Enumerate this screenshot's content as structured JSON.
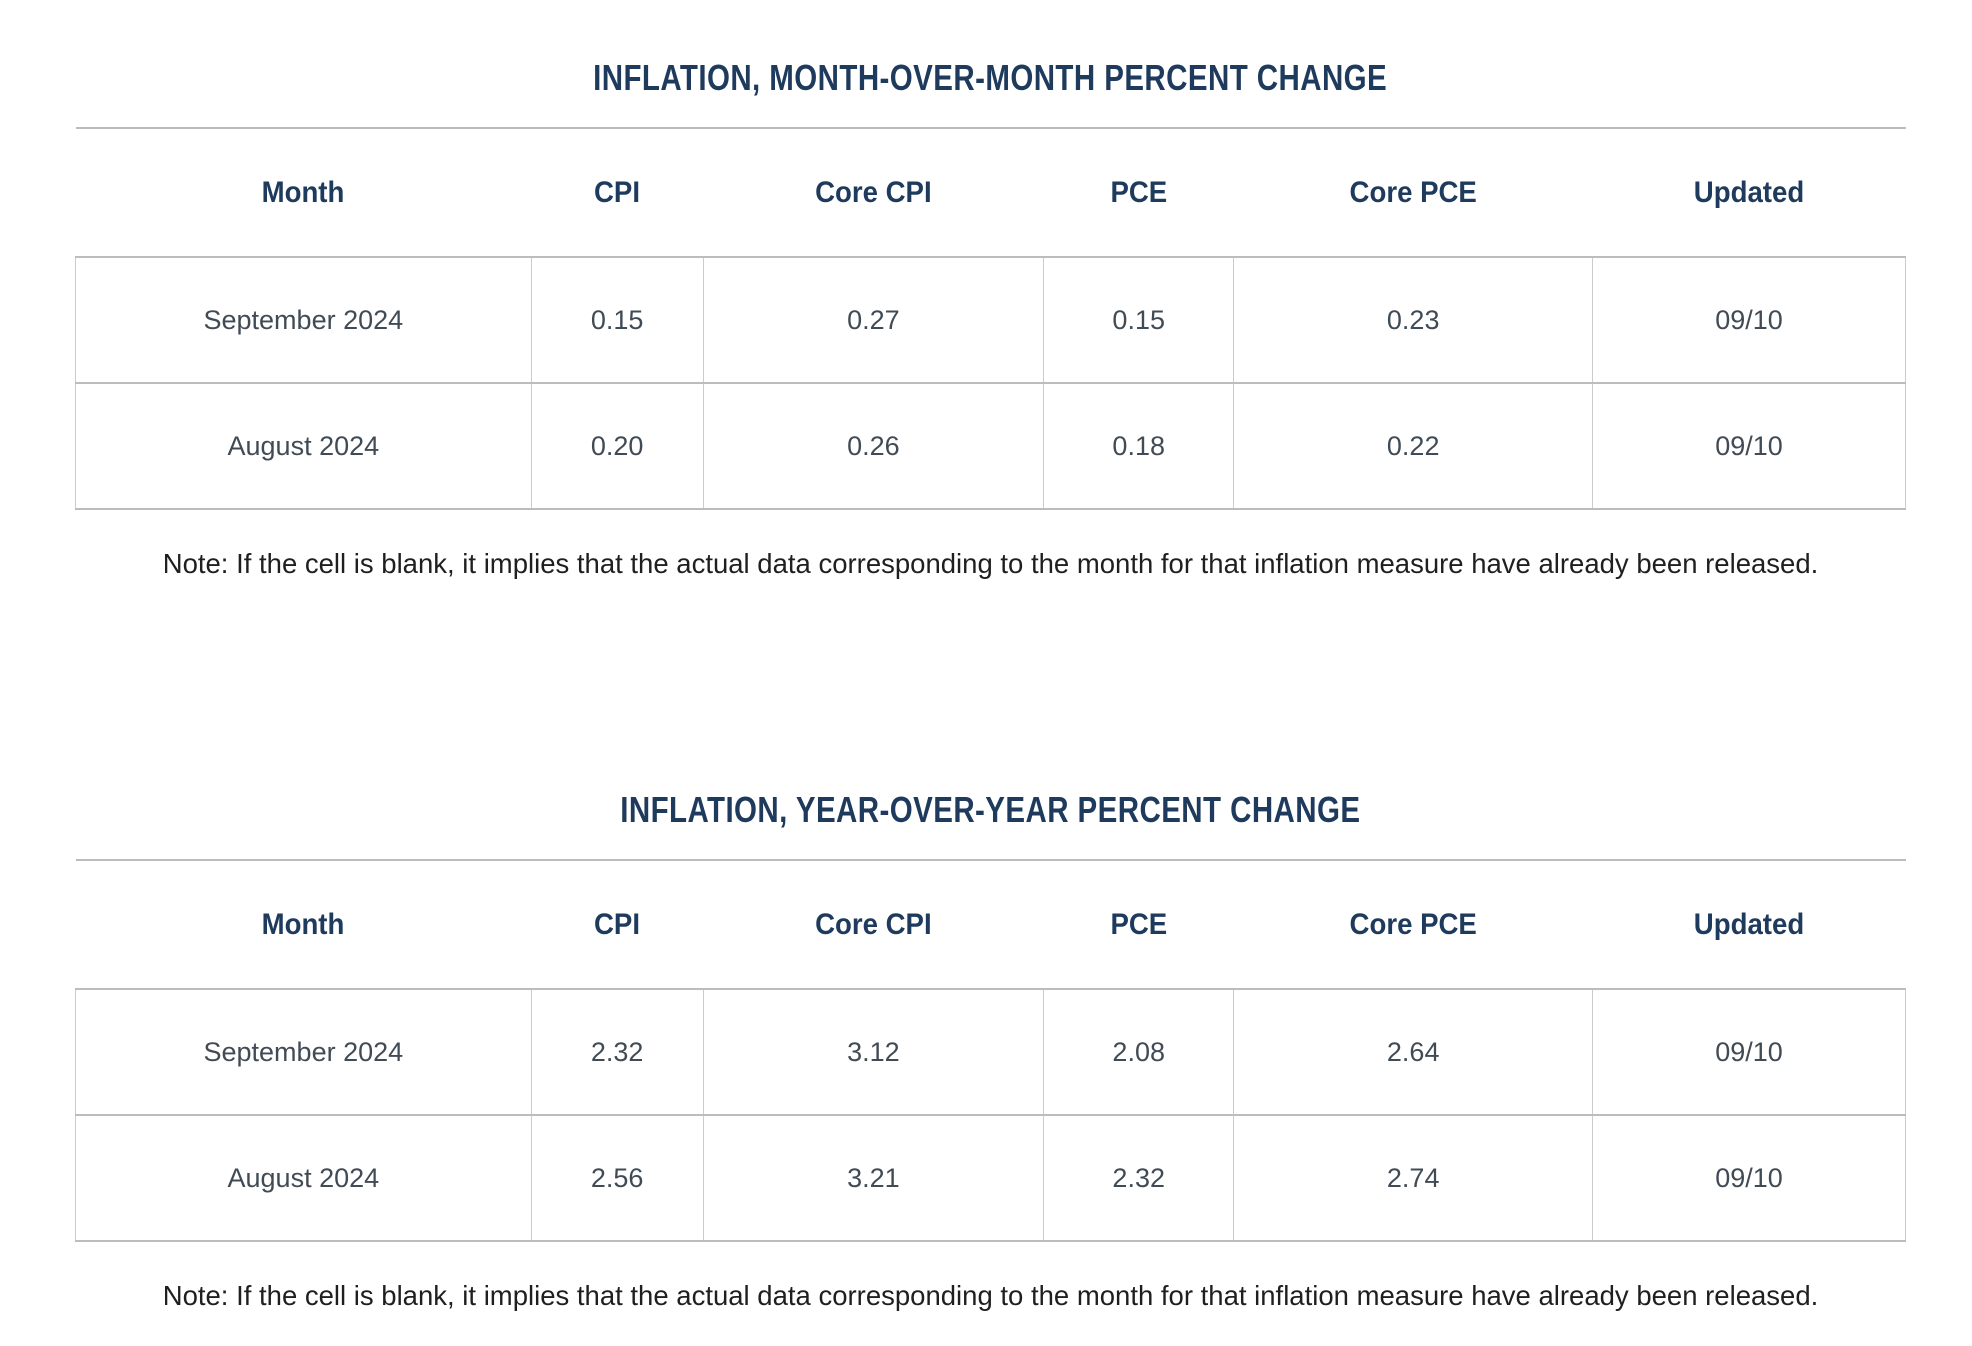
{
  "colors": {
    "title_navy": "#1e3a5c",
    "header_navy": "#1e3a5c",
    "data_text": "#414b55",
    "note_text": "#1f1f1f",
    "rule_horizontal": "#b9bdc0",
    "rule_vertical": "#caccce",
    "background": "#ffffff"
  },
  "tables": [
    {
      "title": "INFLATION, MONTH-OVER-MONTH PERCENT CHANGE",
      "columns": [
        "Month",
        "CPI",
        "Core CPI",
        "PCE",
        "Core PCE",
        "Updated"
      ],
      "rows": [
        [
          "September 2024",
          "0.15",
          "0.27",
          "0.15",
          "0.23",
          "09/10"
        ],
        [
          "August 2024",
          "0.20",
          "0.26",
          "0.18",
          "0.22",
          "09/10"
        ]
      ],
      "note": "Note: If the cell is blank, it implies that the actual data corresponding to the month for that inflation measure have already been released."
    },
    {
      "title": "INFLATION, YEAR-OVER-YEAR PERCENT CHANGE",
      "columns": [
        "Month",
        "CPI",
        "Core CPI",
        "PCE",
        "Core PCE",
        "Updated"
      ],
      "rows": [
        [
          "September 2024",
          "2.32",
          "3.12",
          "2.08",
          "2.64",
          "09/10"
        ],
        [
          "August 2024",
          "2.56",
          "3.21",
          "2.32",
          "2.74",
          "09/10"
        ]
      ],
      "note": "Note: If the cell is blank, it implies that the actual data corresponding to the month for that inflation measure have already been released."
    }
  ]
}
